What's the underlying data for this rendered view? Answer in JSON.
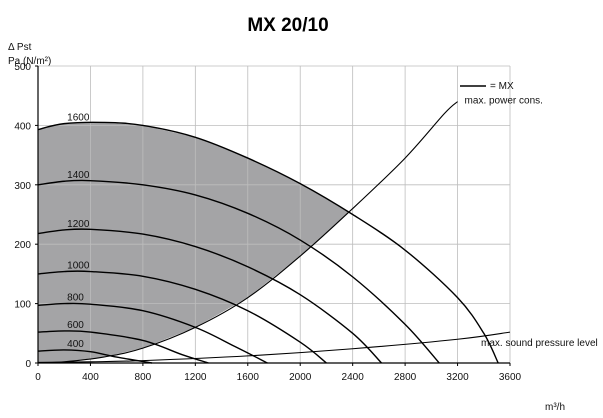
{
  "chart_data": {
    "type": "line",
    "title": "MX 20/10",
    "ylabel_line1": "Δ Pst",
    "ylabel_line2": "Pa (N/m²)",
    "xlabel": "m³/h",
    "xlim": [
      0,
      3600
    ],
    "ylim": [
      0,
      500
    ],
    "x_ticks": [
      0,
      400,
      800,
      1200,
      1600,
      2000,
      2400,
      2800,
      3200,
      3600
    ],
    "y_ticks": [
      0,
      100,
      200,
      300,
      400,
      500
    ],
    "legend": {
      "text": "= MX",
      "position": "top-right"
    },
    "shaded_region": "area under 1600 curve, left of max. power cons. curve, above max. sound pressure level curve",
    "colors": {
      "shade": "#a4a4a6",
      "line": "#000000"
    },
    "series": [
      {
        "name": "1600",
        "points": [
          [
            0,
            393
          ],
          [
            200,
            403
          ],
          [
            500,
            405
          ],
          [
            800,
            400
          ],
          [
            1200,
            380
          ],
          [
            1600,
            345
          ],
          [
            2000,
            302
          ],
          [
            2400,
            250
          ],
          [
            2800,
            190
          ],
          [
            3200,
            110
          ],
          [
            3400,
            50
          ],
          [
            3510,
            0
          ]
        ]
      },
      {
        "name": "1400",
        "points": [
          [
            0,
            300
          ],
          [
            200,
            306
          ],
          [
            400,
            307
          ],
          [
            800,
            300
          ],
          [
            1200,
            283
          ],
          [
            1600,
            252
          ],
          [
            2000,
            207
          ],
          [
            2400,
            145
          ],
          [
            2800,
            65
          ],
          [
            3060,
            0
          ]
        ]
      },
      {
        "name": "1200",
        "points": [
          [
            0,
            218
          ],
          [
            200,
            224
          ],
          [
            400,
            225
          ],
          [
            800,
            217
          ],
          [
            1200,
            196
          ],
          [
            1600,
            162
          ],
          [
            2000,
            115
          ],
          [
            2400,
            50
          ],
          [
            2620,
            0
          ]
        ]
      },
      {
        "name": "1000",
        "points": [
          [
            0,
            150
          ],
          [
            200,
            154
          ],
          [
            400,
            154
          ],
          [
            800,
            146
          ],
          [
            1200,
            124
          ],
          [
            1600,
            88
          ],
          [
            2000,
            35
          ],
          [
            2200,
            0
          ]
        ]
      },
      {
        "name": "800",
        "points": [
          [
            0,
            97
          ],
          [
            200,
            100
          ],
          [
            400,
            99
          ],
          [
            800,
            88
          ],
          [
            1200,
            60
          ],
          [
            1500,
            28
          ],
          [
            1750,
            0
          ]
        ]
      },
      {
        "name": "600",
        "points": [
          [
            0,
            52
          ],
          [
            200,
            54
          ],
          [
            400,
            52
          ],
          [
            800,
            38
          ],
          [
            1100,
            14
          ],
          [
            1300,
            0
          ]
        ]
      },
      {
        "name": "400",
        "points": [
          [
            0,
            20
          ],
          [
            200,
            22
          ],
          [
            400,
            19
          ],
          [
            600,
            10
          ],
          [
            870,
            0
          ]
        ]
      }
    ],
    "annotations": [
      {
        "text": "max. power cons.",
        "points": [
          [
            0,
            0
          ],
          [
            200,
            2
          ],
          [
            500,
            10
          ],
          [
            800,
            25
          ],
          [
            1200,
            60
          ],
          [
            1600,
            110
          ],
          [
            2000,
            180
          ],
          [
            2400,
            260
          ],
          [
            2800,
            345
          ],
          [
            3100,
            420
          ],
          [
            3200,
            440
          ]
        ]
      },
      {
        "text": "max. sound pressure level",
        "points": [
          [
            0,
            1
          ],
          [
            400,
            2
          ],
          [
            800,
            4
          ],
          [
            1600,
            12
          ],
          [
            2400,
            24
          ],
          [
            3200,
            40
          ],
          [
            3600,
            52
          ]
        ]
      }
    ]
  }
}
